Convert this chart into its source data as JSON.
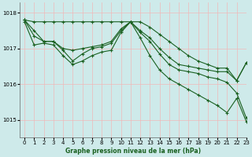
{
  "title": "Graphe pression niveau de la mer (hPa)",
  "background_color": "#ceeaea",
  "grid_color": "#f0b8b8",
  "line_color": "#1a6020",
  "xlim": [
    -0.5,
    23
  ],
  "ylim": [
    1014.5,
    1018.3
  ],
  "yticks": [
    1015,
    1016,
    1017,
    1018
  ],
  "xticks": [
    0,
    1,
    2,
    3,
    4,
    5,
    6,
    7,
    8,
    9,
    10,
    11,
    12,
    13,
    14,
    15,
    16,
    17,
    18,
    19,
    20,
    21,
    22,
    23
  ],
  "series": [
    {
      "x": [
        0,
        1,
        2,
        3,
        4,
        5,
        6,
        7,
        8,
        9,
        10,
        11,
        12,
        13,
        14,
        15,
        16,
        17,
        18,
        19,
        20,
        21,
        22,
        23
      ],
      "y": [
        1017.8,
        1017.75,
        1017.75,
        1017.75,
        1017.75,
        1017.75,
        1017.75,
        1017.75,
        1017.75,
        1017.75,
        1017.75,
        1017.75,
        1017.75,
        1017.6,
        1017.4,
        1017.2,
        1017.0,
        1016.8,
        1016.65,
        1016.55,
        1016.45,
        1016.45,
        1016.1,
        1016.6
      ]
    },
    {
      "x": [
        0,
        1,
        2,
        3,
        4,
        5,
        6,
        7,
        8,
        9,
        10,
        11,
        12,
        13,
        14,
        15,
        16,
        17,
        18,
        19,
        20,
        21,
        22,
        23
      ],
      "y": [
        1017.8,
        1017.5,
        1017.2,
        1017.2,
        1017.0,
        1016.95,
        1017.0,
        1017.05,
        1017.1,
        1017.2,
        1017.55,
        1017.75,
        1017.5,
        1017.3,
        1017.0,
        1016.75,
        1016.55,
        1016.5,
        1016.45,
        1016.4,
        1016.35,
        1016.35,
        1016.1,
        1016.6
      ]
    },
    {
      "x": [
        0,
        1,
        2,
        3,
        4,
        5,
        6,
        7,
        8,
        9,
        10,
        11,
        12,
        13,
        14,
        15,
        16,
        17,
        18,
        19,
        20,
        21,
        22,
        23
      ],
      "y": [
        1017.8,
        1017.35,
        1017.2,
        1017.2,
        1016.95,
        1016.65,
        1016.85,
        1017.0,
        1017.05,
        1017.15,
        1017.5,
        1017.75,
        1017.45,
        1017.2,
        1016.85,
        1016.55,
        1016.4,
        1016.35,
        1016.3,
        1016.2,
        1016.15,
        1016.05,
        1015.75,
        1015.05
      ]
    },
    {
      "x": [
        0,
        1,
        2,
        3,
        4,
        5,
        6,
        7,
        8,
        9,
        10,
        11,
        12,
        13,
        14,
        15,
        16,
        17,
        18,
        19,
        20,
        21,
        22,
        23
      ],
      "y": [
        1017.75,
        1017.1,
        1017.15,
        1017.1,
        1016.8,
        1016.55,
        1016.65,
        1016.8,
        1016.9,
        1016.95,
        1017.45,
        1017.75,
        1017.3,
        1016.8,
        1016.4,
        1016.15,
        1016.0,
        1015.85,
        1015.7,
        1015.55,
        1015.4,
        1015.2,
        1015.6,
        1014.95
      ]
    }
  ]
}
